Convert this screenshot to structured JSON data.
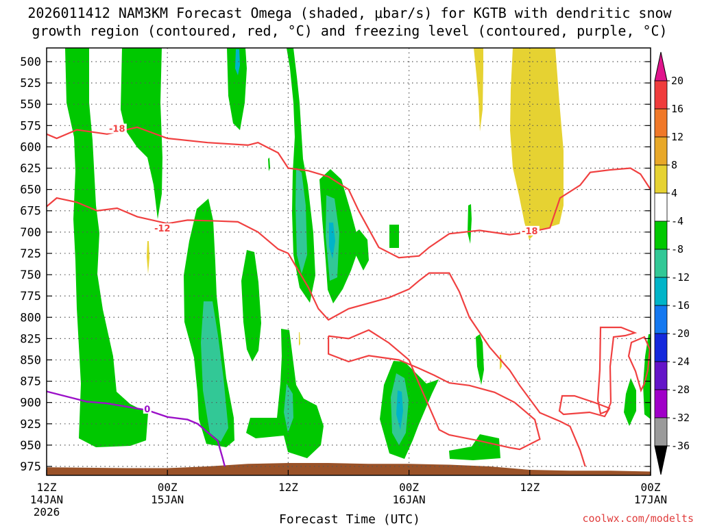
{
  "title": {
    "line1": "2026011412 NAM3KM Forecast Omega (shaded, μbar/s) for KGTB with dendritic snow",
    "line2": "growth region (contoured, red, °C) and freezing level (contoured, purple, °C)"
  },
  "credit": "coolwx.com/modelts",
  "colors": {
    "dgz_contour": "#f04040",
    "freezing_contour": "#9b10c8",
    "terrain": "#9a5228",
    "grid": "#555555"
  },
  "chart_data": {
    "type": "area",
    "xlabel": "Forecast Time (UTC)",
    "ylabel": "",
    "x_range_hours": [
      0,
      60
    ],
    "y_range_hpa": [
      490,
      985
    ],
    "y_ticks": [
      500,
      525,
      550,
      575,
      600,
      625,
      650,
      675,
      700,
      725,
      750,
      775,
      800,
      825,
      850,
      875,
      900,
      925,
      950,
      975
    ],
    "x_ticks": [
      {
        "hour": 0,
        "line1": "12Z",
        "line2": "14JAN",
        "line3": "2026"
      },
      {
        "hour": 12,
        "line1": "00Z",
        "line2": "15JAN",
        "line3": ""
      },
      {
        "hour": 24,
        "line1": "12Z",
        "line2": "",
        "line3": ""
      },
      {
        "hour": 36,
        "line1": "00Z",
        "line2": "16JAN",
        "line3": ""
      },
      {
        "hour": 48,
        "line1": "12Z",
        "line2": "",
        "line3": ""
      },
      {
        "hour": 60,
        "line1": "00Z",
        "line2": "17JAN",
        "line3": ""
      }
    ],
    "grid": true,
    "colorbar": {
      "labels": [
        "20",
        "16",
        "12",
        "8",
        "4",
        "-4",
        "-8",
        "-12",
        "-16",
        "-20",
        "-24",
        "-28",
        "-32",
        "-36"
      ],
      "colors": [
        "#e0148c",
        "#f03c3c",
        "#f07828",
        "#e8a828",
        "#e6d232",
        "#ffffff",
        "#00c800",
        "#32c896",
        "#00b4c8",
        "#1478f0",
        "#1428dc",
        "#6414c8",
        "#a000c8",
        "#9a9a9a",
        "#000000"
      ]
    },
    "contour_labels": [
      {
        "text": "-18",
        "hour": 7.0,
        "p": 580,
        "color": "dgz"
      },
      {
        "text": "-12",
        "hour": 11.5,
        "p": 697,
        "color": "dgz"
      },
      {
        "text": "-18",
        "hour": 48.0,
        "p": 700,
        "color": "dgz"
      },
      {
        "text": "0",
        "hour": 10.0,
        "p": 909,
        "color": "freezing"
      }
    ],
    "dgz_minus18_upper": [
      [
        0,
        585
      ],
      [
        1,
        590
      ],
      [
        3,
        580
      ],
      [
        6,
        585
      ],
      [
        9,
        577
      ],
      [
        12,
        590
      ],
      [
        16,
        595
      ],
      [
        20,
        598
      ],
      [
        21,
        595
      ],
      [
        23,
        607
      ],
      [
        24,
        625
      ],
      [
        26,
        628
      ],
      [
        28,
        635
      ],
      [
        30,
        650
      ],
      [
        31,
        675
      ],
      [
        33,
        718
      ],
      [
        35,
        730
      ],
      [
        37,
        728
      ],
      [
        38,
        718
      ],
      [
        40,
        702
      ],
      [
        43,
        698
      ],
      [
        46,
        703
      ],
      [
        48,
        700
      ],
      [
        50,
        695
      ],
      [
        51,
        660
      ],
      [
        53,
        645
      ],
      [
        54,
        630
      ],
      [
        56,
        627
      ],
      [
        58,
        625
      ],
      [
        59,
        632
      ],
      [
        60,
        650
      ]
    ],
    "dgz_minus12_mid": [
      [
        0,
        670
      ],
      [
        1,
        660
      ],
      [
        3,
        665
      ],
      [
        5,
        675
      ],
      [
        7,
        672
      ],
      [
        9,
        682
      ],
      [
        12,
        690
      ],
      [
        14,
        686
      ],
      [
        17,
        687
      ],
      [
        19,
        688
      ],
      [
        21,
        700
      ],
      [
        23,
        720
      ],
      [
        24,
        725
      ],
      [
        26,
        765
      ],
      [
        27,
        790
      ],
      [
        28,
        803
      ],
      [
        30,
        790
      ],
      [
        34,
        777
      ],
      [
        36,
        767
      ],
      [
        37,
        757
      ],
      [
        38,
        748
      ],
      [
        40,
        748
      ],
      [
        41,
        770
      ],
      [
        42,
        800
      ],
      [
        44,
        835
      ],
      [
        46,
        862
      ],
      [
        47,
        880
      ],
      [
        49,
        912
      ],
      [
        51,
        922
      ],
      [
        52,
        928
      ],
      [
        53,
        956
      ],
      [
        53.5,
        975
      ]
    ],
    "dgz_lower_loop": [
      [
        28,
        822
      ],
      [
        30,
        825
      ],
      [
        32,
        815
      ],
      [
        34,
        830
      ],
      [
        36,
        850
      ],
      [
        37,
        878
      ],
      [
        38,
        905
      ],
      [
        39,
        932
      ],
      [
        40,
        938
      ],
      [
        43,
        945
      ],
      [
        46,
        953
      ],
      [
        47,
        955
      ],
      [
        49,
        943
      ],
      [
        48.5,
        920
      ],
      [
        46.5,
        900
      ],
      [
        44.5,
        888
      ],
      [
        42,
        880
      ],
      [
        40,
        877
      ],
      [
        38.5,
        868
      ],
      [
        37,
        860
      ],
      [
        35,
        850
      ],
      [
        32,
        845
      ],
      [
        30,
        852
      ],
      [
        28,
        843
      ],
      [
        28,
        822
      ]
    ],
    "freezing_level": [
      [
        0,
        887
      ],
      [
        2,
        893
      ],
      [
        4,
        899
      ],
      [
        6,
        901
      ],
      [
        8,
        905
      ],
      [
        10,
        909
      ],
      [
        12,
        917
      ],
      [
        14,
        920
      ],
      [
        15,
        925
      ],
      [
        16,
        935
      ],
      [
        17,
        945
      ],
      [
        17.5,
        966
      ],
      [
        17.7,
        975
      ]
    ],
    "terrain_p": [
      [
        0,
        985
      ],
      [
        0,
        976
      ],
      [
        8,
        977
      ],
      [
        12,
        977
      ],
      [
        16,
        975
      ],
      [
        20,
        972
      ],
      [
        24,
        971
      ],
      [
        28,
        971
      ],
      [
        32,
        972
      ],
      [
        36,
        972
      ],
      [
        40,
        973
      ],
      [
        44,
        975
      ],
      [
        48,
        979
      ],
      [
        52,
        980
      ],
      [
        56,
        980
      ],
      [
        60,
        981
      ],
      [
        60,
        985
      ]
    ]
  }
}
